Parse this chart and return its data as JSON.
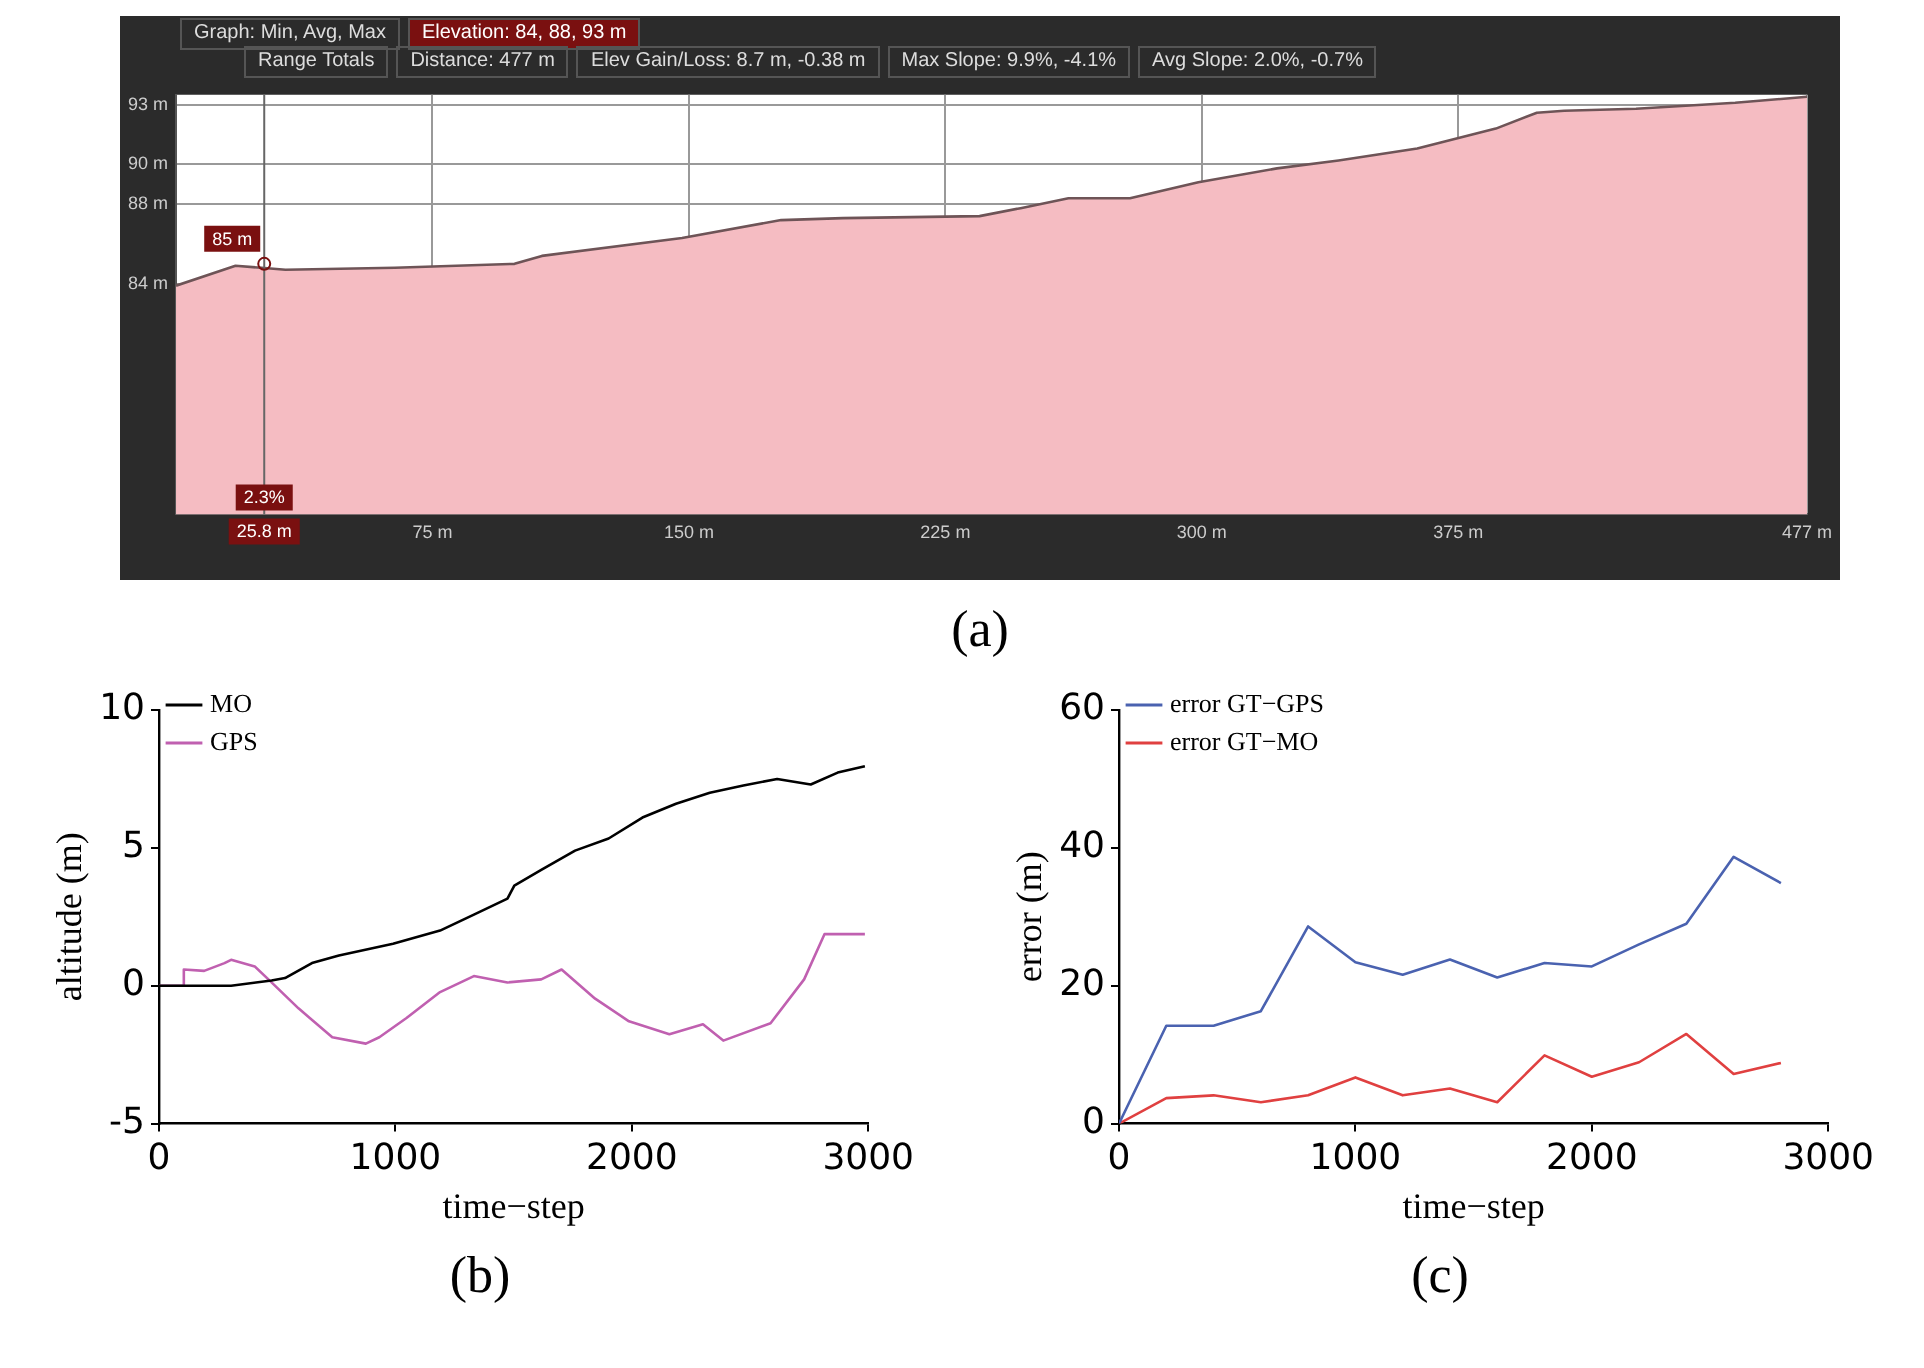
{
  "chart_data": [
    {
      "type": "area",
      "annotations": [
        "Graph: Min, Avg, Max",
        "Elevation: 84, 88, 93 m",
        "Range Totals",
        "Distance: 477 m",
        "Elev Gain/Loss: 8.7 m, -0.38 m",
        "Max Slope: 9.9%, -4.1%",
        "Avg Slope: 2.0%, -0.7%",
        {
          "text": "85 m",
          "x": 25.8,
          "y": 85
        },
        {
          "text": "2.3%",
          "x": 25.8
        },
        "(a)"
      ],
      "x": [
        0,
        17.4,
        25,
        32,
        64,
        99,
        107,
        148,
        177,
        195,
        235,
        247,
        261,
        279,
        299,
        322,
        340,
        363,
        386,
        398,
        406,
        427,
        456,
        477
      ],
      "series": [
        {
          "color": "#f5bcc2",
          "values": [
            83.9,
            84.9,
            84.8,
            84.7,
            84.8,
            85.0,
            85.4,
            86.3,
            87.2,
            87.3,
            87.4,
            87.8,
            88.3,
            88.3,
            89.1,
            89.8,
            90.2,
            90.8,
            91.8,
            92.6,
            92.7,
            92.8,
            93.1,
            93.4
          ]
        }
      ],
      "xlim": [
        0,
        477
      ],
      "xticks": [
        {
          "value": 75,
          "label": "75 m"
        },
        {
          "value": 150,
          "label": "150 m"
        },
        {
          "value": 225,
          "label": "225 m"
        },
        {
          "value": 300,
          "label": "300 m"
        },
        {
          "value": 375,
          "label": "375 m"
        },
        {
          "value": 477,
          "label": "477 m"
        }
      ],
      "ylim": [
        72.4,
        93.5
      ],
      "yticks": [
        {
          "value": 84,
          "label": "84 m"
        },
        {
          "value": 88,
          "label": "88 m"
        },
        {
          "value": 90,
          "label": "90 m"
        },
        {
          "value": 93,
          "label": "93 m"
        }
      ],
      "ref_lines": [
        {
          "axis": "x",
          "value": 25.8,
          "label": "25.8 m"
        }
      ],
      "grid": true
    },
    {
      "type": "line",
      "xlabel": "time−step",
      "ylabel": "altitude (m)",
      "annotations": [
        "(b)"
      ],
      "series": [
        {
          "name": "MO",
          "color": "#000000",
          "x": [
            0,
            305,
            476,
            533,
            647,
            761,
            990,
            1189,
            1332,
            1474,
            1503,
            1617,
            1760,
            1902,
            2045,
            2187,
            2330,
            2472,
            2615,
            2757,
            2871,
            2986
          ],
          "values": [
            0,
            0,
            0.19,
            0.28,
            0.82,
            1.1,
            1.52,
            2.0,
            2.58,
            3.16,
            3.63,
            4.2,
            4.9,
            5.34,
            6.1,
            6.6,
            7.0,
            7.26,
            7.5,
            7.3,
            7.73,
            7.96
          ]
        },
        {
          "name": "GPS",
          "color": "#c060b0",
          "x": [
            0,
            105,
            105,
            191,
            277,
            305,
            405,
            476,
            590,
            733,
            875,
            932,
            1047,
            1189,
            1332,
            1474,
            1617,
            1703,
            1845,
            1988,
            2159,
            2301,
            2387,
            2587,
            2729,
            2815,
            2986
          ],
          "values": [
            0,
            0,
            0.59,
            0.54,
            0.82,
            0.94,
            0.7,
            0.12,
            -0.82,
            -1.87,
            -2.1,
            -1.87,
            -1.17,
            -0.23,
            0.35,
            0.12,
            0.23,
            0.59,
            -0.47,
            -1.29,
            -1.76,
            -1.4,
            -1.99,
            -1.36,
            0.23,
            1.87,
            1.87
          ]
        }
      ],
      "xlim": [
        0,
        3000
      ],
      "xticks": [
        0,
        1000,
        2000,
        3000
      ],
      "ylim": [
        -5,
        10
      ],
      "yticks": [
        -5,
        0,
        5,
        10
      ],
      "legend": "top left"
    },
    {
      "type": "line",
      "xlabel": "time−step",
      "ylabel": "error (m)",
      "annotations": [
        "(c)"
      ],
      "x": [
        0,
        200,
        400,
        600,
        800,
        1000,
        1200,
        1400,
        1600,
        1800,
        2000,
        2200,
        2400,
        2600,
        2800
      ],
      "series": [
        {
          "name": "error GT−GPS",
          "color": "#4a62b0",
          "values": [
            0,
            14.2,
            14.2,
            16.3,
            28.6,
            23.4,
            21.6,
            23.8,
            21.2,
            23.3,
            22.8,
            26.0,
            29.0,
            38.7,
            34.9
          ]
        },
        {
          "name": "error GT−MO",
          "color": "#e04040",
          "values": [
            0,
            3.7,
            4.1,
            3.1,
            4.1,
            6.7,
            4.1,
            5.1,
            3.1,
            9.9,
            6.8,
            8.9,
            13.0,
            7.2,
            8.8
          ]
        }
      ],
      "xlim": [
        0,
        3000
      ],
      "xticks": [
        0,
        1000,
        2000,
        3000
      ],
      "ylim": [
        0,
        60
      ],
      "yticks": [
        0,
        20,
        40,
        60
      ],
      "legend": "top left"
    }
  ]
}
